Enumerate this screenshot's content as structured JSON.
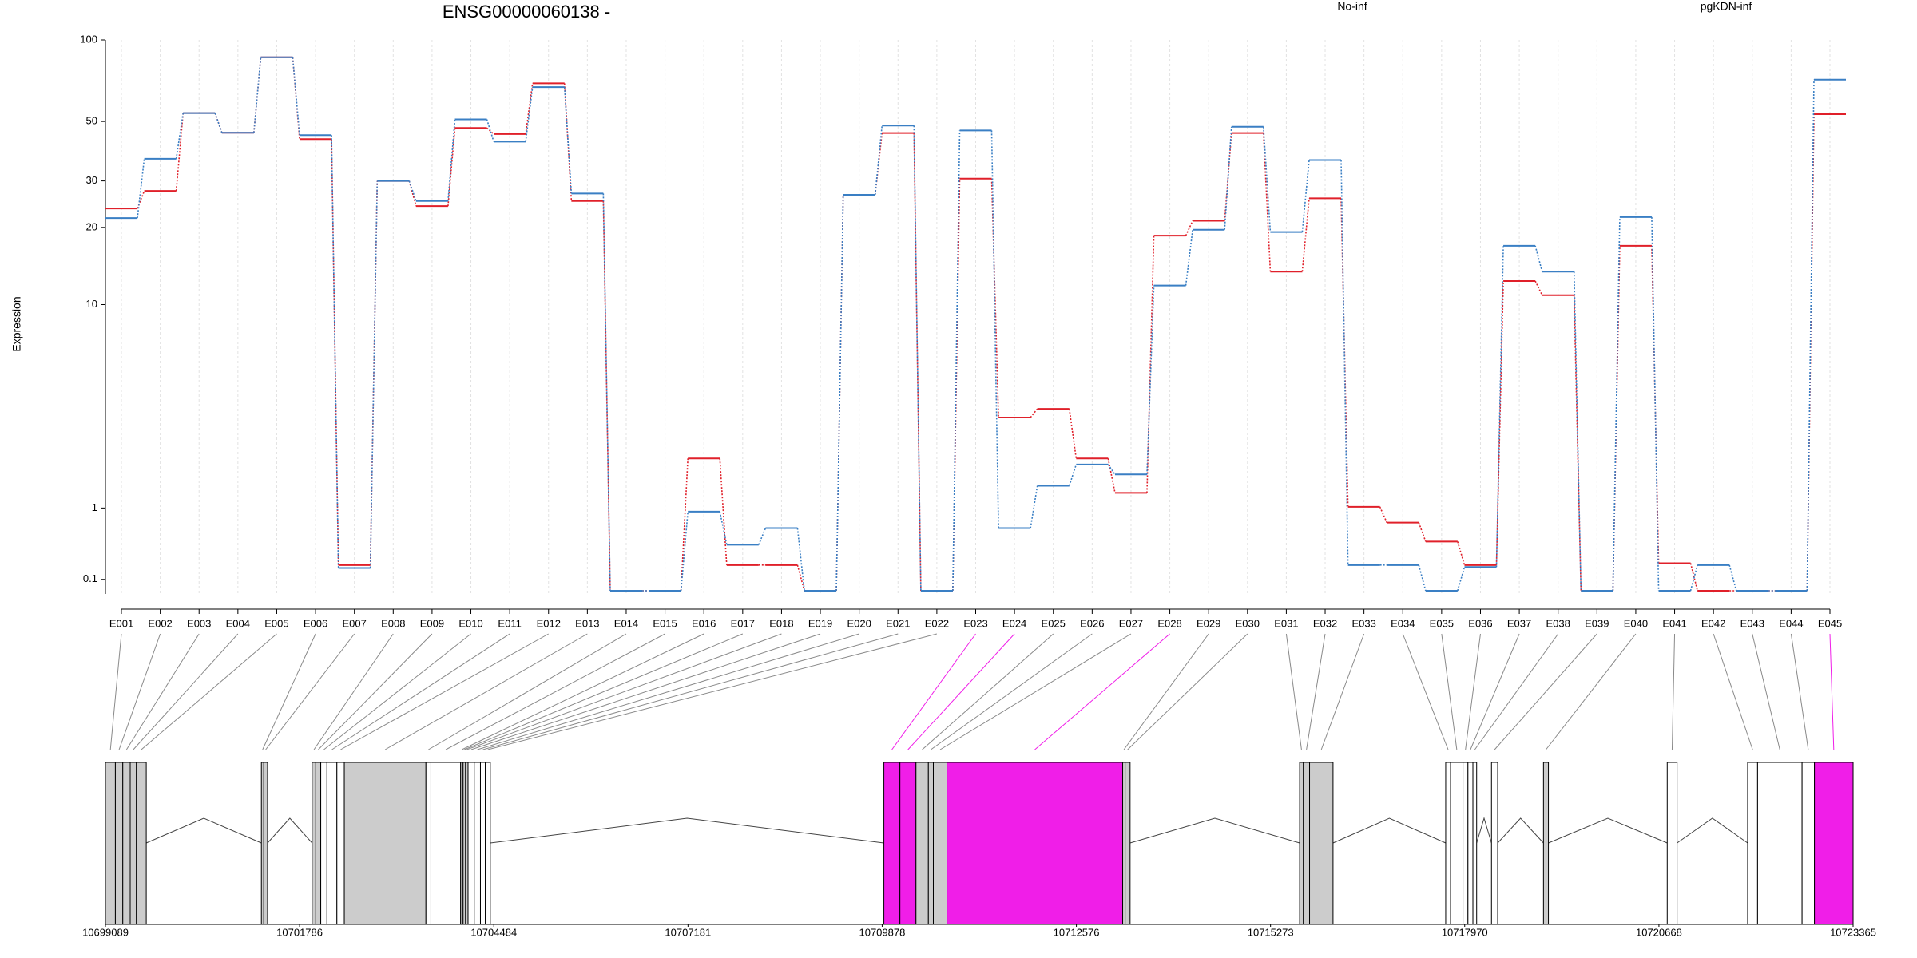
{
  "chart_data": [
    {
      "type": "line",
      "title": "ENSG00000060138 -",
      "y_label": "Expression",
      "yscale": "log1p",
      "grid": true,
      "ylim": [
        0,
        100
      ],
      "yticks": [
        0.1,
        1,
        10,
        20,
        30,
        50,
        100
      ],
      "categories": [
        "E001",
        "E002",
        "E003",
        "E004",
        "E005",
        "E006",
        "E007",
        "E008",
        "E009",
        "E010",
        "E011",
        "E012",
        "E013",
        "E014",
        "E015",
        "E016",
        "E017",
        "E018",
        "E019",
        "E020",
        "E021",
        "E022",
        "E023",
        "E024",
        "E025",
        "E026",
        "E027",
        "E028",
        "E029",
        "E030",
        "E031",
        "E032",
        "E033",
        "E034",
        "E035",
        "E036",
        "E037",
        "E038",
        "E039",
        "E040",
        "E041",
        "E042",
        "E043",
        "E044",
        "E045"
      ],
      "series": [
        {
          "name": "No-inf",
          "color": "#e0202a",
          "values": [
            23.6,
            27.5,
            53.7,
            45.4,
            86.3,
            43,
            0.24,
            30,
            24.1,
            47.3,
            44.9,
            69.2,
            25.2,
            0,
            0,
            2.03,
            0.24,
            0.24,
            0,
            26.6,
            45.3,
            0,
            30.6,
            3.27,
            3.59,
            2.03,
            1.27,
            18.6,
            21.2,
            45.3,
            13.5,
            25.8,
            1.02,
            0.77,
            0.51,
            0.24,
            12.4,
            10.9,
            0,
            17,
            0.26,
            0,
            0,
            0,
            53.2
          ]
        },
        {
          "name": "pgKDN-inf",
          "color": "#3a7fc4",
          "values": [
            21.7,
            36.3,
            53.7,
            45.4,
            86.3,
            44.5,
            0.21,
            30,
            25.2,
            50.9,
            42.1,
            67,
            26.9,
            0,
            0,
            0.94,
            0.47,
            0.69,
            0,
            26.6,
            48.3,
            0,
            46.3,
            0.69,
            1.41,
            1.88,
            1.65,
            11.9,
            19.6,
            47.8,
            19.2,
            35.9,
            0.24,
            0.24,
            0,
            0.22,
            17,
            13.5,
            0,
            21.9,
            0,
            0.24,
            0,
            0,
            71.4
          ]
        }
      ]
    },
    {
      "type": "gene-model",
      "xlim": [
        10699089,
        10723365
      ],
      "xticks": [
        10699089,
        10701786,
        10704484,
        10707181,
        10709878,
        10712576,
        10715273,
        10717970,
        10720668,
        10723365
      ],
      "exons": [
        {
          "start": 10699089,
          "end": 10699227,
          "color": "#cccccc"
        },
        {
          "start": 10699227,
          "end": 10699330,
          "color": "#cccccc"
        },
        {
          "start": 10699330,
          "end": 10699433,
          "color": "#cccccc"
        },
        {
          "start": 10699433,
          "end": 10699519,
          "color": "#cccccc"
        },
        {
          "start": 10699519,
          "end": 10699656,
          "color": "#cccccc"
        },
        {
          "start": 10701255,
          "end": 10701289,
          "color": "#cccccc"
        },
        {
          "start": 10701289,
          "end": 10701341,
          "color": "#cccccc"
        },
        {
          "start": 10701960,
          "end": 10702011,
          "color": "#cccccc"
        },
        {
          "start": 10702011,
          "end": 10702080,
          "color": "#cccccc"
        },
        {
          "start": 10702080,
          "end": 10702166,
          "color": "#ffffff"
        },
        {
          "start": 10702166,
          "end": 10702304,
          "color": "#ffffff"
        },
        {
          "start": 10702304,
          "end": 10702407,
          "color": "#ffffff"
        },
        {
          "start": 10702407,
          "end": 10703541,
          "color": "#cccccc"
        },
        {
          "start": 10703541,
          "end": 10703610,
          "color": "#ffffff"
        },
        {
          "start": 10703610,
          "end": 10704023,
          "color": "#ffffff"
        },
        {
          "start": 10704023,
          "end": 10704057,
          "color": "#cccccc"
        },
        {
          "start": 10704057,
          "end": 10704091,
          "color": "#cccccc"
        },
        {
          "start": 10704091,
          "end": 10704126,
          "color": "#cccccc"
        },
        {
          "start": 10704126,
          "end": 10704212,
          "color": "#ffffff"
        },
        {
          "start": 10704212,
          "end": 10704298,
          "color": "#ffffff"
        },
        {
          "start": 10704298,
          "end": 10704366,
          "color": "#ffffff"
        },
        {
          "start": 10704366,
          "end": 10704435,
          "color": "#ffffff"
        },
        {
          "start": 10709902,
          "end": 10710125,
          "color": "#f01ee8"
        },
        {
          "start": 10710125,
          "end": 10710348,
          "color": "#f01ee8"
        },
        {
          "start": 10710348,
          "end": 10710520,
          "color": "#cccccc"
        },
        {
          "start": 10710520,
          "end": 10710589,
          "color": "#cccccc"
        },
        {
          "start": 10710589,
          "end": 10710778,
          "color": "#cccccc"
        },
        {
          "start": 10710778,
          "end": 10713219,
          "color": "#f01ee8"
        },
        {
          "start": 10713219,
          "end": 10713253,
          "color": "#cccccc"
        },
        {
          "start": 10713253,
          "end": 10713322,
          "color": "#cccccc"
        },
        {
          "start": 10715677,
          "end": 10715729,
          "color": "#cccccc"
        },
        {
          "start": 10715729,
          "end": 10715815,
          "color": "#cccccc"
        },
        {
          "start": 10715815,
          "end": 10716141,
          "color": "#cccccc"
        },
        {
          "start": 10717706,
          "end": 10717774,
          "color": "#ffffff"
        },
        {
          "start": 10717774,
          "end": 10717946,
          "color": "#ffffff"
        },
        {
          "start": 10717946,
          "end": 10718015,
          "color": "#ffffff"
        },
        {
          "start": 10718015,
          "end": 10718084,
          "color": "#ffffff"
        },
        {
          "start": 10718084,
          "end": 10718136,
          "color": "#ffffff"
        },
        {
          "start": 10718342,
          "end": 10718428,
          "color": "#ffffff"
        },
        {
          "start": 10719064,
          "end": 10719133,
          "color": "#cccccc"
        },
        {
          "start": 10720783,
          "end": 10720920,
          "color": "#ffffff"
        },
        {
          "start": 10721900,
          "end": 10722038,
          "color": "#ffffff"
        },
        {
          "start": 10722038,
          "end": 10722656,
          "color": "#ffffff"
        },
        {
          "start": 10722656,
          "end": 10722828,
          "color": "#ffffff"
        },
        {
          "start": 10722828,
          "end": 10723365,
          "color": "#f01ee8"
        }
      ]
    }
  ]
}
